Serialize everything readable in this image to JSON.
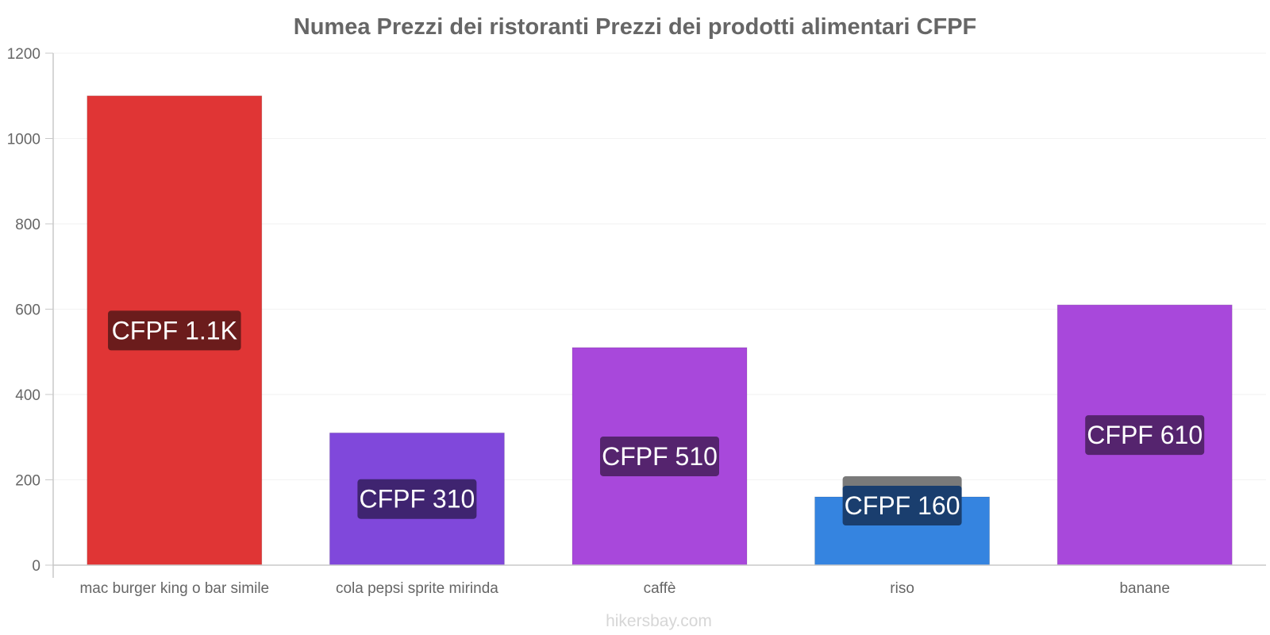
{
  "chart_data": {
    "type": "bar",
    "title": "Numea Prezzi dei ristoranti Prezzi dei prodotti alimentari CFPF",
    "xlabel": "",
    "ylabel": "",
    "ylim": [
      0,
      1200
    ],
    "yticks": [
      0,
      200,
      400,
      600,
      800,
      1000,
      1200
    ],
    "grid": true,
    "categories": [
      "mac burger king o bar simile",
      "cola pepsi sprite mirinda",
      "caffè",
      "riso",
      "banane"
    ],
    "values": [
      1100,
      310,
      510,
      160,
      610
    ],
    "value_labels": [
      "CFPF 1.1K",
      "CFPF 310",
      "CFPF 510",
      "CFPF 160",
      "CFPF 610"
    ],
    "colors": [
      "#e03535",
      "#8048db",
      "#a848db",
      "#3584e0",
      "#a848db"
    ],
    "label_bg_colors": [
      "#6b1c1c",
      "#3f2470",
      "#55246e",
      "#1a3e6e",
      "#55246e"
    ]
  },
  "watermark": "hikersbay.com"
}
